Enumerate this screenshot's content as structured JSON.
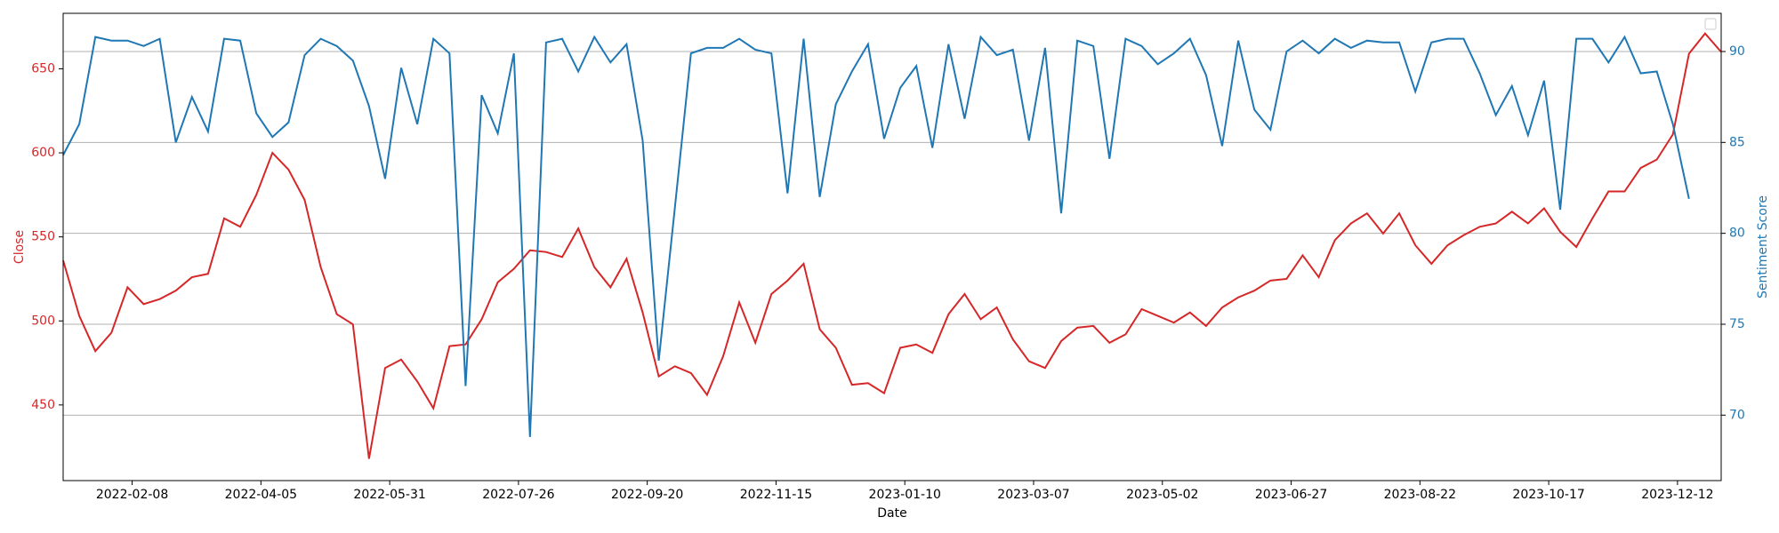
{
  "chart_data": {
    "type": "line",
    "xlabel": "Date",
    "ylabel": "Close",
    "y2label": "Sentiment Score",
    "x": [
      "2022-01-09",
      "2022-01-16",
      "2022-01-23",
      "2022-01-30",
      "2022-02-06",
      "2022-02-13",
      "2022-02-20",
      "2022-02-27",
      "2022-03-06",
      "2022-03-13",
      "2022-03-20",
      "2022-03-27",
      "2022-04-03",
      "2022-04-10",
      "2022-04-17",
      "2022-04-24",
      "2022-05-01",
      "2022-05-08",
      "2022-05-15",
      "2022-05-22",
      "2022-05-29",
      "2022-06-05",
      "2022-06-12",
      "2022-06-19",
      "2022-06-26",
      "2022-07-03",
      "2022-07-10",
      "2022-07-17",
      "2022-07-24",
      "2022-07-31",
      "2022-08-07",
      "2022-08-14",
      "2022-08-21",
      "2022-08-28",
      "2022-09-04",
      "2022-09-11",
      "2022-09-18",
      "2022-09-25",
      "2022-10-02",
      "2022-10-09",
      "2022-10-16",
      "2022-10-23",
      "2022-10-30",
      "2022-11-06",
      "2022-11-13",
      "2022-11-20",
      "2022-11-27",
      "2022-12-04",
      "2022-12-11",
      "2022-12-18",
      "2022-12-25",
      "2023-01-01",
      "2023-01-08",
      "2023-01-15",
      "2023-01-22",
      "2023-01-29",
      "2023-02-05",
      "2023-02-12",
      "2023-02-19",
      "2023-02-26",
      "2023-03-05",
      "2023-03-12",
      "2023-03-19",
      "2023-03-26",
      "2023-04-02",
      "2023-04-09",
      "2023-04-16",
      "2023-04-23",
      "2023-04-30",
      "2023-05-07",
      "2023-05-14",
      "2023-05-21",
      "2023-05-28",
      "2023-06-04",
      "2023-06-11",
      "2023-06-18",
      "2023-06-25",
      "2023-07-02",
      "2023-07-09",
      "2023-07-16",
      "2023-07-23",
      "2023-07-30",
      "2023-08-06",
      "2023-08-13",
      "2023-08-20",
      "2023-08-27",
      "2023-09-03",
      "2023-09-10",
      "2023-09-17",
      "2023-09-24",
      "2023-10-01",
      "2023-10-08",
      "2023-10-15",
      "2023-10-22",
      "2023-10-29",
      "2023-11-05",
      "2023-11-12",
      "2023-11-19",
      "2023-11-26",
      "2023-12-03",
      "2023-12-10",
      "2023-12-17",
      "2023-12-24",
      "2023-12-31"
    ],
    "xlim": [
      "2022-01-09",
      "2023-12-31"
    ],
    "xticks": [
      "2022-02-08",
      "2022-04-05",
      "2022-05-31",
      "2022-07-26",
      "2022-09-20",
      "2022-11-15",
      "2023-01-10",
      "2023-03-07",
      "2023-05-02",
      "2023-06-27",
      "2023-08-22",
      "2023-10-17",
      "2023-12-12"
    ],
    "ylim": [
      405,
      683
    ],
    "yticks": [
      450,
      500,
      550,
      600,
      650
    ],
    "y2lim": [
      66.4,
      92.1
    ],
    "y2ticks": [
      70,
      75,
      80,
      85,
      90
    ],
    "grid": true,
    "legend": "upper right",
    "series": [
      {
        "color": "#d62728",
        "axis": "y",
        "values": [
          536,
          503,
          482,
          493,
          520,
          510,
          513,
          518,
          526,
          528,
          561,
          556,
          575,
          600,
          590,
          572,
          532,
          504,
          498,
          418,
          472,
          477,
          464,
          448,
          485,
          486,
          501,
          523,
          531,
          542,
          541,
          538,
          555,
          532,
          520,
          537,
          505,
          467,
          473,
          469,
          456,
          479,
          511,
          487,
          516,
          524,
          534,
          495,
          484,
          462,
          463,
          457,
          484,
          486,
          481,
          504,
          516,
          501,
          508,
          489,
          476,
          472,
          488,
          496,
          497,
          487,
          492,
          507,
          503,
          499,
          505,
          497,
          508,
          514,
          518,
          524,
          525,
          539,
          526,
          548,
          558,
          564,
          552,
          564,
          545,
          534,
          545,
          551,
          556,
          558,
          565,
          558,
          567,
          553,
          544,
          561,
          577,
          577,
          591,
          596,
          611,
          659,
          671,
          660
        ]
      },
      {
        "color": "#1f77b4",
        "axis": "y2",
        "values": [
          84.3,
          86.0,
          90.8,
          90.6,
          90.6,
          90.3,
          90.7,
          85.0,
          87.5,
          85.6,
          90.7,
          90.6,
          86.6,
          85.3,
          86.1,
          89.8,
          90.7,
          90.3,
          89.5,
          87.0,
          83.0,
          89.1,
          86.0,
          90.7,
          89.9,
          71.6,
          87.6,
          85.5,
          89.9,
          68.8,
          90.5,
          90.7,
          88.9,
          90.8,
          89.4,
          90.4,
          85.1,
          73.0,
          81.4,
          89.9,
          90.2,
          90.2,
          90.7,
          90.1,
          89.9,
          82.2,
          90.7,
          82.0,
          87.1,
          88.9,
          90.4,
          85.2,
          88.0,
          89.2,
          84.7,
          90.4,
          86.3,
          90.8,
          89.8,
          90.1,
          85.1,
          90.2,
          81.1,
          90.6,
          90.3,
          84.1,
          90.7,
          90.3,
          89.3,
          89.9,
          90.7,
          88.7,
          84.8,
          90.6,
          86.8,
          85.7,
          90.0,
          90.6,
          89.9,
          90.7,
          90.2,
          90.6,
          90.5,
          90.5,
          87.8,
          90.5,
          90.7,
          90.7,
          88.8,
          86.5,
          88.1,
          85.4,
          88.4,
          81.3,
          90.7,
          90.7,
          89.4,
          90.8,
          88.8,
          88.9,
          86.0,
          81.9,
          null,
          null
        ]
      }
    ]
  }
}
